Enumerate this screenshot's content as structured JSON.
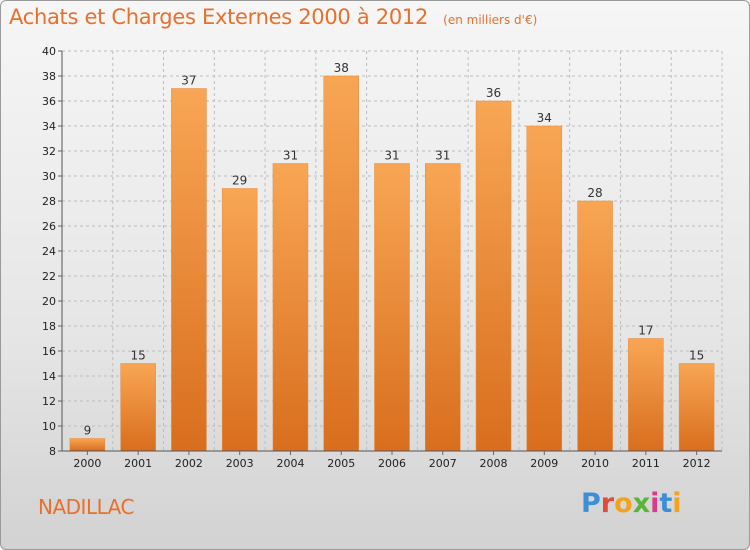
{
  "header": {
    "title": "Achats et Charges Externes 2000 à 2012",
    "unit": "(en milliers d'€)"
  },
  "footer": {
    "location": "NADILLAC",
    "brand": "Proxiti",
    "brand_colors": [
      "#3a8fd6",
      "#e04b3a",
      "#f2a21c",
      "#5ab33a",
      "#d93b8a",
      "#3a8fd6",
      "#f2a21c"
    ]
  },
  "colors": {
    "bar_top": "#f8a654",
    "bar_bottom": "#d86e1e",
    "accent": "#e8702a",
    "grid": "#bdbdbd"
  },
  "chart_data": {
    "type": "bar",
    "categories": [
      "2000",
      "2001",
      "2002",
      "2003",
      "2004",
      "2005",
      "2006",
      "2007",
      "2008",
      "2009",
      "2010",
      "2011",
      "2012"
    ],
    "values": [
      9,
      15,
      37,
      29,
      31,
      38,
      31,
      31,
      36,
      34,
      28,
      17,
      15
    ],
    "ylim": [
      8,
      40
    ],
    "yticks": [
      8,
      10,
      12,
      14,
      16,
      18,
      20,
      22,
      24,
      26,
      28,
      30,
      32,
      34,
      36,
      38,
      40
    ],
    "grid": true,
    "xlabel": "",
    "ylabel": ""
  }
}
